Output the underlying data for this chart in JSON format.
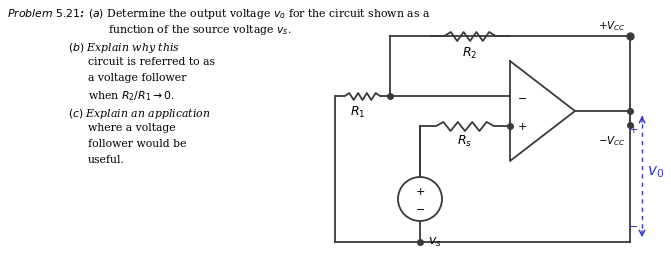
{
  "bg_color": "#ffffff",
  "text_color": "#000000",
  "lc": "#3a3a3a",
  "dc": "#3333cc",
  "label_R1": "$R_1$",
  "label_R2": "$R_2$",
  "label_Rs": "$R_s$",
  "label_vs": "$v_s$",
  "label_vo": "$v_0$",
  "label_Vcc_pos": "$+V_{CC}$",
  "label_Vcc_neg": "$-V_{CC}$"
}
